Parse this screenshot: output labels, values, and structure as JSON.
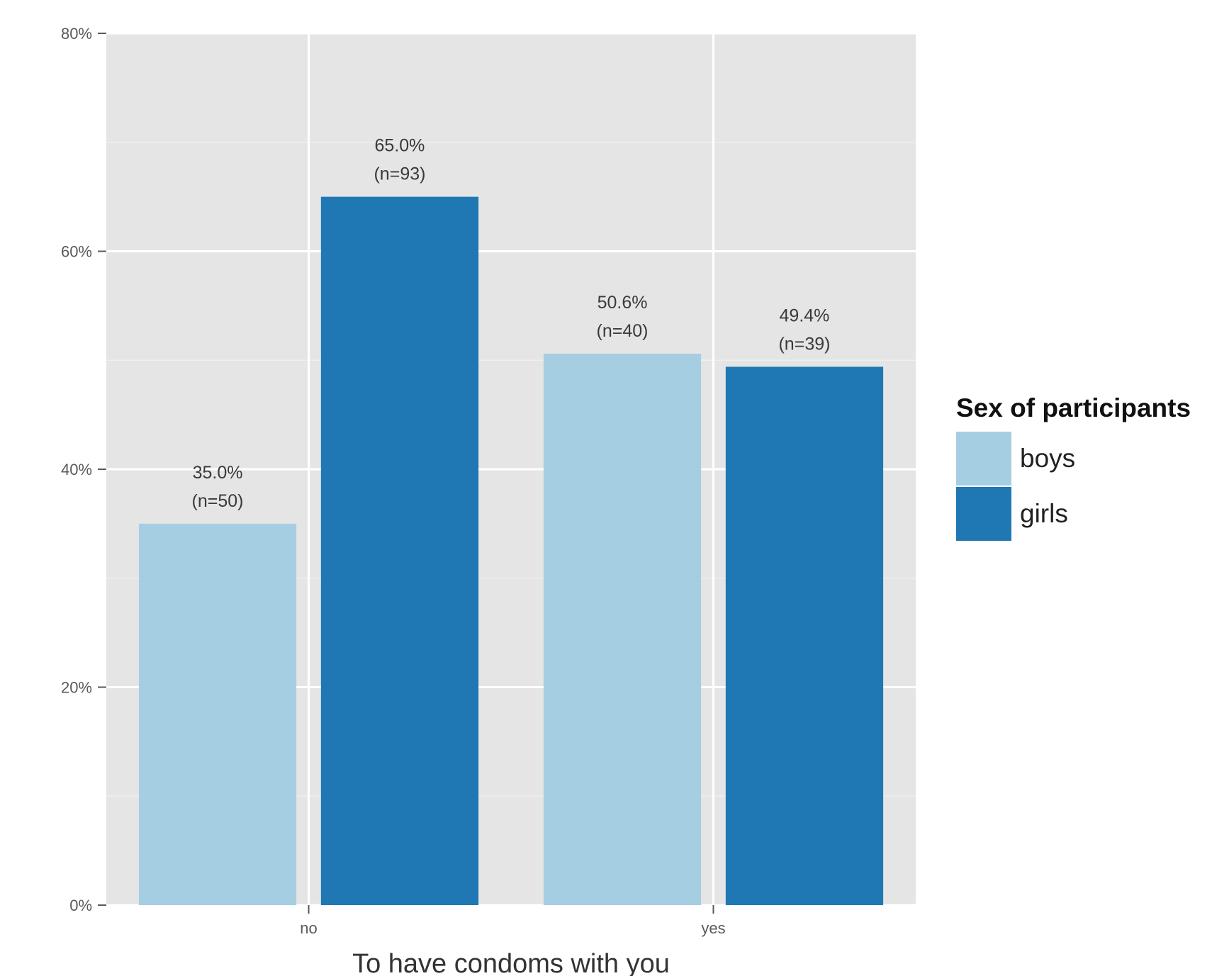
{
  "chart_data": {
    "type": "bar",
    "xlabel": "To have condoms with you",
    "ylabel": "",
    "categories": [
      "no",
      "yes"
    ],
    "ylim": [
      0,
      80
    ],
    "y_ticks": [
      0,
      20,
      40,
      60,
      80
    ],
    "y_tick_labels": [
      "0%",
      "20%",
      "40%",
      "60%",
      "80%"
    ],
    "grid": true,
    "legend": {
      "title": "Sex of participants",
      "position": "right"
    },
    "series": [
      {
        "name": "boys",
        "color": "#a6cee3",
        "values": [
          35.0,
          50.6
        ],
        "labels": [
          [
            "35.0%",
            "(n=50)"
          ],
          [
            "50.6%",
            "(n=40)"
          ]
        ]
      },
      {
        "name": "girls",
        "color": "#1f78b4",
        "values": [
          65.0,
          49.4
        ],
        "labels": [
          [
            "65.0%",
            "(n=93)"
          ],
          [
            "49.4%",
            "(n=39)"
          ]
        ]
      }
    ],
    "panel_color": "#e5e5e5",
    "grid_color": "#ffffff"
  }
}
